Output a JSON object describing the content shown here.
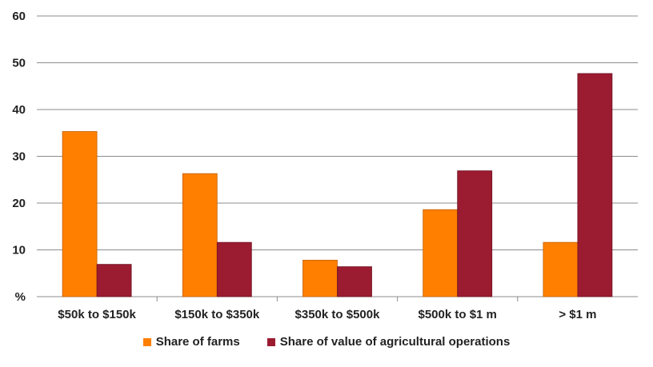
{
  "chart_data": {
    "type": "bar",
    "categories": [
      "$50k to $150k",
      "$150k to $350k",
      "$350k to $500k",
      "$500k to $1 m",
      "> $1 m"
    ],
    "series": [
      {
        "name": "Share of farms",
        "color": "#FF7F00",
        "values": [
          35.3,
          26.3,
          7.8,
          18.6,
          11.6
        ]
      },
      {
        "name": "Share of value of agricultural operations",
        "color": "#9B1B30",
        "values": [
          6.9,
          11.6,
          6.4,
          26.9,
          47.7
        ]
      }
    ],
    "ylim": [
      0,
      60
    ],
    "yticks": [
      0,
      10,
      20,
      30,
      40,
      50,
      60
    ],
    "ytick_labels": [
      "%",
      "10",
      "20",
      "30",
      "40",
      "50",
      "60"
    ],
    "grid": true,
    "legend": "bottom"
  }
}
